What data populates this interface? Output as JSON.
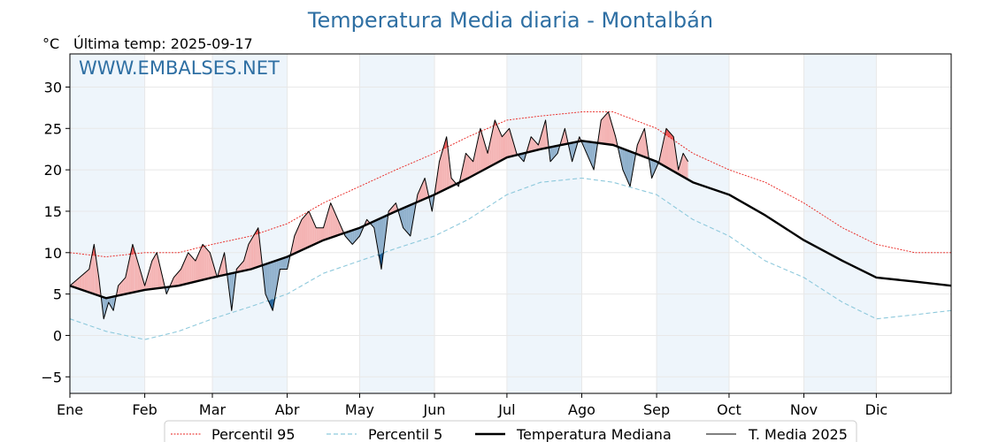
{
  "chart_data": {
    "type": "line",
    "title": "Temperatura Media diaria - Montalbán",
    "unit_label": "°C",
    "last_temp_label": "Última temp: 2025-09-17",
    "watermark": "WWW.EMBALSES.NET",
    "ylim": [
      -7,
      34
    ],
    "y_ticks": [
      -5,
      0,
      5,
      10,
      15,
      20,
      25,
      30
    ],
    "y_tick_labels": [
      "−5",
      "0",
      "5",
      "10",
      "15",
      "20",
      "25",
      "30"
    ],
    "xlim": [
      0,
      365
    ],
    "months": [
      "Ene",
      "Feb",
      "Mar",
      "Abr",
      "May",
      "Jun",
      "Jul",
      "Ago",
      "Sep",
      "Oct",
      "Nov",
      "Dic"
    ],
    "month_starts": [
      0,
      31,
      59,
      90,
      120,
      151,
      181,
      212,
      243,
      273,
      304,
      334
    ],
    "grid": true,
    "legend_position": "bottom",
    "colors": {
      "p95": "#e8201c",
      "p5": "#8ec9dc",
      "median": "#000000",
      "current": "#000000",
      "above_fill": "#f4b3b3",
      "above_extreme_fill": "#ee5a5a",
      "below_fill": "#8fb0cc",
      "below_extreme_fill": "#1f5f96",
      "month_band": "#eef5fb",
      "title": "#2e6fa3"
    },
    "series": [
      {
        "name": "Percentil 95",
        "key": "p95",
        "points": [
          [
            0,
            10
          ],
          [
            15,
            9.5
          ],
          [
            31,
            10
          ],
          [
            45,
            10
          ],
          [
            59,
            11
          ],
          [
            75,
            12
          ],
          [
            90,
            13.5
          ],
          [
            105,
            16
          ],
          [
            120,
            18
          ],
          [
            135,
            20
          ],
          [
            151,
            22
          ],
          [
            165,
            24
          ],
          [
            181,
            26
          ],
          [
            195,
            26.5
          ],
          [
            212,
            27
          ],
          [
            225,
            27
          ],
          [
            243,
            25
          ],
          [
            258,
            22
          ],
          [
            273,
            20
          ],
          [
            288,
            18.5
          ],
          [
            304,
            16
          ],
          [
            320,
            13
          ],
          [
            334,
            11
          ],
          [
            350,
            10
          ],
          [
            365,
            10
          ]
        ]
      },
      {
        "name": "Percentil 5",
        "key": "p5",
        "points": [
          [
            0,
            2
          ],
          [
            15,
            0.5
          ],
          [
            31,
            -0.5
          ],
          [
            45,
            0.5
          ],
          [
            59,
            2
          ],
          [
            75,
            3.5
          ],
          [
            90,
            5
          ],
          [
            105,
            7.5
          ],
          [
            120,
            9
          ],
          [
            135,
            10.5
          ],
          [
            151,
            12
          ],
          [
            165,
            14
          ],
          [
            181,
            17
          ],
          [
            195,
            18.5
          ],
          [
            212,
            19
          ],
          [
            225,
            18.5
          ],
          [
            243,
            17
          ],
          [
            258,
            14
          ],
          [
            273,
            12
          ],
          [
            288,
            9
          ],
          [
            304,
            7
          ],
          [
            320,
            4
          ],
          [
            334,
            2
          ],
          [
            350,
            2.5
          ],
          [
            365,
            3
          ]
        ]
      },
      {
        "name": "Temperatura Mediana",
        "key": "median",
        "points": [
          [
            0,
            6
          ],
          [
            15,
            4.5
          ],
          [
            31,
            5.5
          ],
          [
            45,
            6
          ],
          [
            59,
            7
          ],
          [
            75,
            8
          ],
          [
            90,
            9.5
          ],
          [
            105,
            11.5
          ],
          [
            120,
            13
          ],
          [
            135,
            15
          ],
          [
            151,
            17
          ],
          [
            165,
            19
          ],
          [
            181,
            21.5
          ],
          [
            195,
            22.5
          ],
          [
            212,
            23.5
          ],
          [
            225,
            23
          ],
          [
            243,
            21
          ],
          [
            258,
            18.5
          ],
          [
            273,
            17
          ],
          [
            288,
            14.5
          ],
          [
            304,
            11.5
          ],
          [
            320,
            9
          ],
          [
            334,
            7
          ],
          [
            350,
            6.5
          ],
          [
            365,
            6
          ]
        ]
      },
      {
        "name": "T. Media 2025",
        "key": "current",
        "points": [
          [
            0,
            6
          ],
          [
            4,
            7
          ],
          [
            8,
            8
          ],
          [
            10,
            11
          ],
          [
            12,
            7
          ],
          [
            14,
            2
          ],
          [
            16,
            4
          ],
          [
            18,
            3
          ],
          [
            20,
            6
          ],
          [
            23,
            7
          ],
          [
            26,
            11
          ],
          [
            28,
            9
          ],
          [
            31,
            6
          ],
          [
            34,
            9
          ],
          [
            36,
            10
          ],
          [
            40,
            5
          ],
          [
            43,
            7
          ],
          [
            46,
            8
          ],
          [
            49,
            10
          ],
          [
            52,
            9
          ],
          [
            55,
            11
          ],
          [
            58,
            10
          ],
          [
            61,
            7
          ],
          [
            64,
            10
          ],
          [
            67,
            3
          ],
          [
            69,
            8
          ],
          [
            72,
            9
          ],
          [
            74,
            11
          ],
          [
            78,
            13
          ],
          [
            81,
            5
          ],
          [
            84,
            3
          ],
          [
            87,
            8
          ],
          [
            90,
            8
          ],
          [
            93,
            12
          ],
          [
            96,
            14
          ],
          [
            99,
            15
          ],
          [
            102,
            13
          ],
          [
            105,
            13
          ],
          [
            108,
            16
          ],
          [
            111,
            14
          ],
          [
            114,
            12
          ],
          [
            117,
            11
          ],
          [
            120,
            12
          ],
          [
            123,
            14
          ],
          [
            126,
            13
          ],
          [
            129,
            8
          ],
          [
            132,
            15
          ],
          [
            135,
            16
          ],
          [
            138,
            13
          ],
          [
            141,
            12
          ],
          [
            144,
            17
          ],
          [
            147,
            19
          ],
          [
            150,
            15
          ],
          [
            153,
            21
          ],
          [
            156,
            24
          ],
          [
            158,
            19
          ],
          [
            161,
            18
          ],
          [
            164,
            22
          ],
          [
            167,
            21
          ],
          [
            170,
            25
          ],
          [
            173,
            22
          ],
          [
            176,
            26
          ],
          [
            179,
            24
          ],
          [
            182,
            25
          ],
          [
            185,
            22
          ],
          [
            188,
            21
          ],
          [
            191,
            24
          ],
          [
            194,
            23
          ],
          [
            197,
            26
          ],
          [
            199,
            21
          ],
          [
            202,
            22
          ],
          [
            205,
            25
          ],
          [
            208,
            21
          ],
          [
            211,
            24
          ],
          [
            214,
            22
          ],
          [
            217,
            20
          ],
          [
            220,
            26
          ],
          [
            223,
            27
          ],
          [
            226,
            24
          ],
          [
            229,
            20
          ],
          [
            232,
            18
          ],
          [
            235,
            23
          ],
          [
            238,
            25
          ],
          [
            241,
            19
          ],
          [
            244,
            21
          ],
          [
            247,
            25
          ],
          [
            250,
            24
          ],
          [
            252,
            20
          ],
          [
            254,
            22
          ],
          [
            256,
            21
          ]
        ]
      }
    ]
  }
}
